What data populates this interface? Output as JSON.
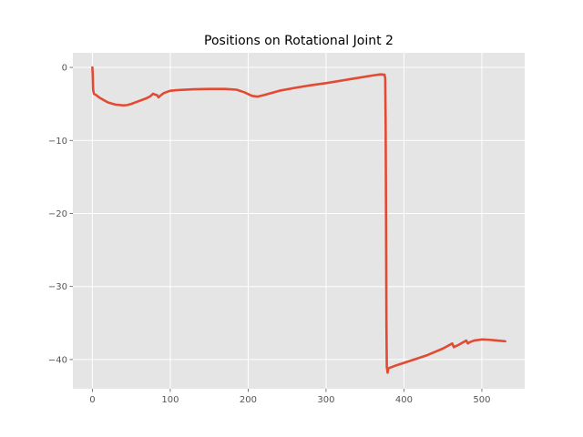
{
  "chart_data": {
    "type": "line",
    "title": "Positions on Rotational Joint 2",
    "xlabel": "",
    "ylabel": "",
    "xlim": [
      -25,
      555
    ],
    "ylim": [
      -44,
      2
    ],
    "xticks": [
      0,
      100,
      200,
      300,
      400,
      500
    ],
    "yticks": [
      0,
      -10,
      -20,
      -30,
      -40
    ],
    "xtick_labels": [
      "0",
      "100",
      "200",
      "300",
      "400",
      "500"
    ],
    "ytick_labels": [
      "0",
      "−10",
      "−20",
      "−30",
      "−40"
    ],
    "grid": true,
    "background": "#E5E5E5",
    "grid_color": "#FFFFFF",
    "series": [
      {
        "color": "#E24A33",
        "x": [
          0,
          0.5,
          1,
          2,
          5,
          10,
          20,
          30,
          40,
          45,
          50,
          60,
          70,
          75,
          78,
          80,
          83,
          85,
          88,
          92,
          100,
          110,
          130,
          150,
          170,
          185,
          195,
          205,
          212,
          220,
          240,
          260,
          280,
          300,
          320,
          340,
          360,
          370,
          375,
          376,
          376.5,
          377,
          377.5,
          378,
          379,
          380,
          390,
          410,
          430,
          450,
          462,
          464,
          466,
          470,
          480,
          482,
          485,
          490,
          500,
          510,
          520,
          530
        ],
        "y": [
          0,
          -1,
          -3,
          -3.6,
          -3.8,
          -4.2,
          -4.8,
          -5.1,
          -5.2,
          -5.15,
          -5.0,
          -4.6,
          -4.2,
          -3.9,
          -3.6,
          -3.7,
          -3.8,
          -4.1,
          -3.8,
          -3.5,
          -3.2,
          -3.1,
          -3.0,
          -2.95,
          -2.95,
          -3.05,
          -3.4,
          -3.9,
          -4.0,
          -3.8,
          -3.2,
          -2.8,
          -2.45,
          -2.15,
          -1.8,
          -1.45,
          -1.1,
          -0.95,
          -1.0,
          -1.5,
          -8.0,
          -20.0,
          -35.0,
          -41.0,
          -41.8,
          -41.2,
          -40.8,
          -40.1,
          -39.4,
          -38.5,
          -37.8,
          -38.3,
          -38.2,
          -38.0,
          -37.4,
          -37.8,
          -37.6,
          -37.4,
          -37.25,
          -37.3,
          -37.4,
          -37.5
        ]
      }
    ]
  }
}
